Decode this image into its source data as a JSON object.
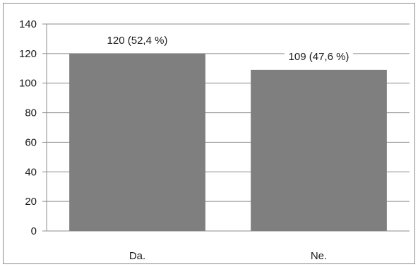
{
  "chart_data": {
    "type": "bar",
    "categories": [
      "Da.",
      "Ne."
    ],
    "values": [
      120,
      109
    ],
    "data_labels": [
      "120 (52,4 %)",
      "109 (47,6 %)"
    ],
    "y_ticks": [
      "0",
      "20",
      "40",
      "60",
      "80",
      "100",
      "120",
      "140"
    ],
    "ylim": [
      0,
      140
    ],
    "grid": true,
    "bar_color": "#7f7f7f",
    "grid_color": "#8c8c8c"
  }
}
